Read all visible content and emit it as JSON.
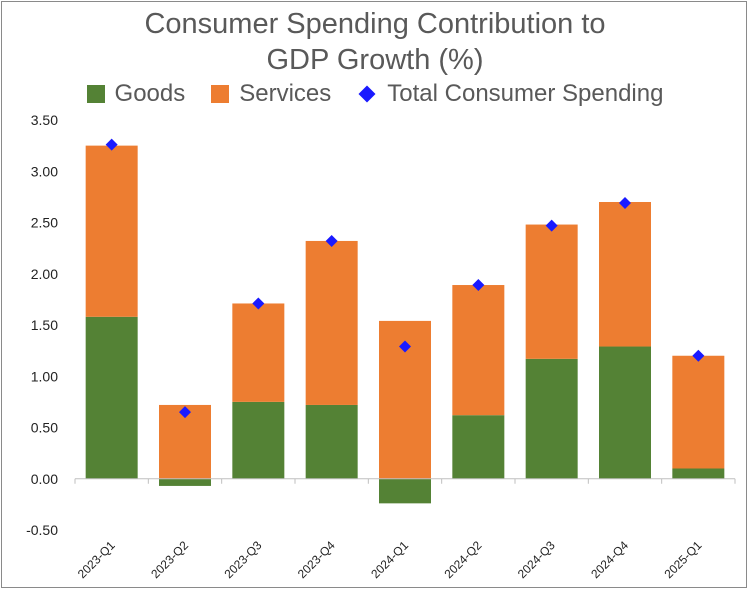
{
  "chart_data": {
    "type": "bar",
    "stacked": true,
    "title_lines": [
      "Consumer Spending Contribution to",
      "GDP Growth (%)"
    ],
    "categories": [
      "2023-Q1",
      "2023-Q2",
      "2023-Q3",
      "2023-Q4",
      "2024-Q1",
      "2024-Q2",
      "2024-Q3",
      "2024-Q4",
      "2025-Q1"
    ],
    "series": [
      {
        "name": "Goods",
        "kind": "bar",
        "color": "#548235",
        "values": [
          1.58,
          -0.07,
          0.75,
          0.72,
          -0.24,
          0.62,
          1.17,
          1.29,
          0.1
        ]
      },
      {
        "name": "Services",
        "kind": "bar",
        "color": "#ed7d31",
        "values": [
          1.67,
          0.72,
          0.96,
          1.6,
          1.54,
          1.27,
          1.31,
          1.41,
          1.1
        ]
      },
      {
        "name": "Total Consumer Spending",
        "kind": "marker",
        "color": "#1a1aff",
        "values": [
          3.26,
          0.65,
          1.71,
          2.32,
          1.29,
          1.89,
          2.47,
          2.69,
          1.2
        ]
      }
    ],
    "ylim": [
      -0.5,
      3.5
    ],
    "yticks": [
      "3.50",
      "3.00",
      "2.50",
      "2.00",
      "1.50",
      "1.00",
      "0.50",
      "0.00",
      "-0.50"
    ],
    "ytick_values": [
      3.5,
      3.0,
      2.5,
      2.0,
      1.5,
      1.0,
      0.5,
      0.0,
      -0.5
    ],
    "legend_position": "top",
    "grid": false,
    "xlabel": "",
    "ylabel": ""
  }
}
